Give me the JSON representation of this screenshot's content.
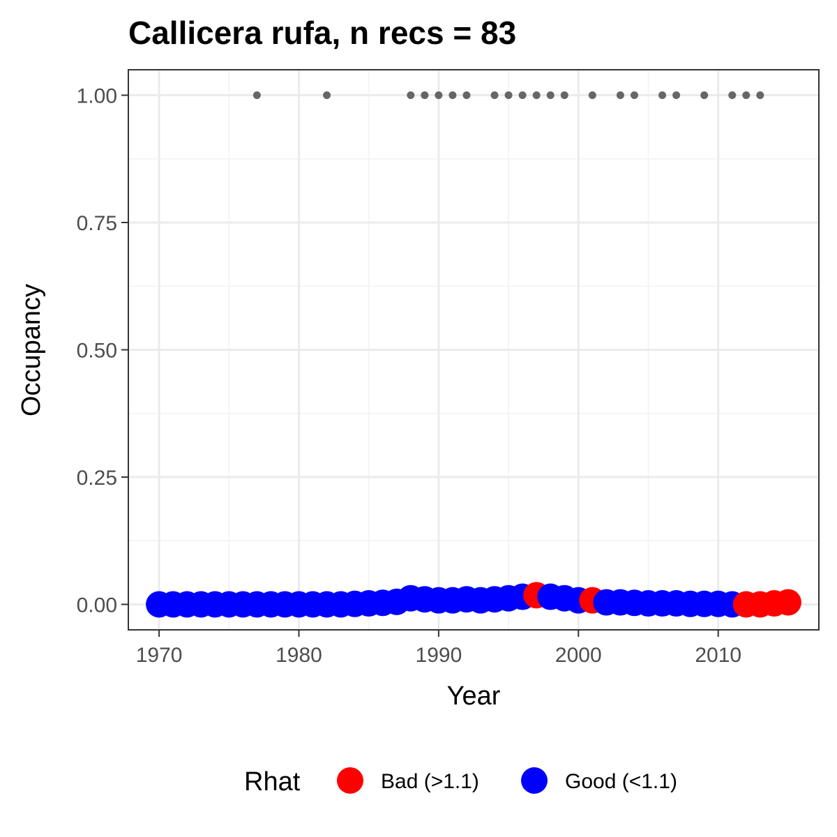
{
  "chart_data": {
    "type": "scatter",
    "title": "Callicera rufa, n recs = 83",
    "xlabel": "Year",
    "ylabel": "Occupancy",
    "xlim": [
      1967.8,
      2017.2
    ],
    "ylim": [
      -0.05,
      1.05
    ],
    "x_ticks": [
      1970,
      1980,
      1990,
      2000,
      2010
    ],
    "x_tick_labels": [
      "1970",
      "1980",
      "1990",
      "2000",
      "2010"
    ],
    "y_ticks": [
      0,
      0.25,
      0.5,
      0.75,
      1.0
    ],
    "y_tick_labels": [
      "0.00",
      "0.25",
      "0.50",
      "0.75",
      "1.00"
    ],
    "grid": true,
    "legend": {
      "title": "Rhat",
      "position": "bottom",
      "entries": [
        {
          "label": "Bad (>1.1)",
          "color": "#ff0000"
        },
        {
          "label": "Good (<1.1)",
          "color": "#0000ff"
        }
      ]
    },
    "series": [
      {
        "name": "Occupancy estimate",
        "x": [
          1970,
          1971,
          1972,
          1973,
          1974,
          1975,
          1976,
          1977,
          1978,
          1979,
          1980,
          1981,
          1982,
          1983,
          1984,
          1985,
          1986,
          1987,
          1988,
          1989,
          1990,
          1991,
          1992,
          1993,
          1994,
          1995,
          1996,
          1997,
          1998,
          1999,
          2000,
          2001,
          2002,
          2003,
          2004,
          2005,
          2006,
          2007,
          2008,
          2009,
          2010,
          2011,
          2012,
          2013,
          2014,
          2015
        ],
        "y": [
          0.0,
          0.0,
          0.0,
          0.0,
          0.0,
          0.0,
          0.0,
          0.0,
          0.0,
          0.0,
          0.0,
          0.0,
          0.0,
          0.0,
          0.001,
          0.002,
          0.003,
          0.005,
          0.012,
          0.01,
          0.008,
          0.008,
          0.01,
          0.008,
          0.01,
          0.012,
          0.015,
          0.018,
          0.015,
          0.012,
          0.008,
          0.008,
          0.004,
          0.004,
          0.003,
          0.002,
          0.002,
          0.002,
          0.001,
          0.001,
          0.001,
          0.0,
          0.0,
          0.0,
          0.002,
          0.004
        ],
        "rhat": [
          "Good",
          "Good",
          "Good",
          "Good",
          "Good",
          "Good",
          "Good",
          "Good",
          "Good",
          "Good",
          "Good",
          "Good",
          "Good",
          "Good",
          "Good",
          "Good",
          "Good",
          "Good",
          "Good",
          "Good",
          "Good",
          "Good",
          "Good",
          "Good",
          "Good",
          "Good",
          "Good",
          "Bad",
          "Good",
          "Good",
          "Good",
          "Bad",
          "Good",
          "Good",
          "Good",
          "Good",
          "Good",
          "Good",
          "Good",
          "Good",
          "Good",
          "Good",
          "Bad",
          "Bad",
          "Bad",
          "Bad"
        ]
      },
      {
        "name": "Records (observed years)",
        "color": "#666666",
        "x": [
          1977,
          1982,
          1988,
          1989,
          1990,
          1991,
          1992,
          1994,
          1995,
          1996,
          1997,
          1998,
          1999,
          2001,
          2003,
          2004,
          2006,
          2007,
          2009,
          2011,
          2012,
          2013
        ],
        "y": [
          1,
          1,
          1,
          1,
          1,
          1,
          1,
          1,
          1,
          1,
          1,
          1,
          1,
          1,
          1,
          1,
          1,
          1,
          1,
          1,
          1,
          1
        ]
      }
    ]
  }
}
